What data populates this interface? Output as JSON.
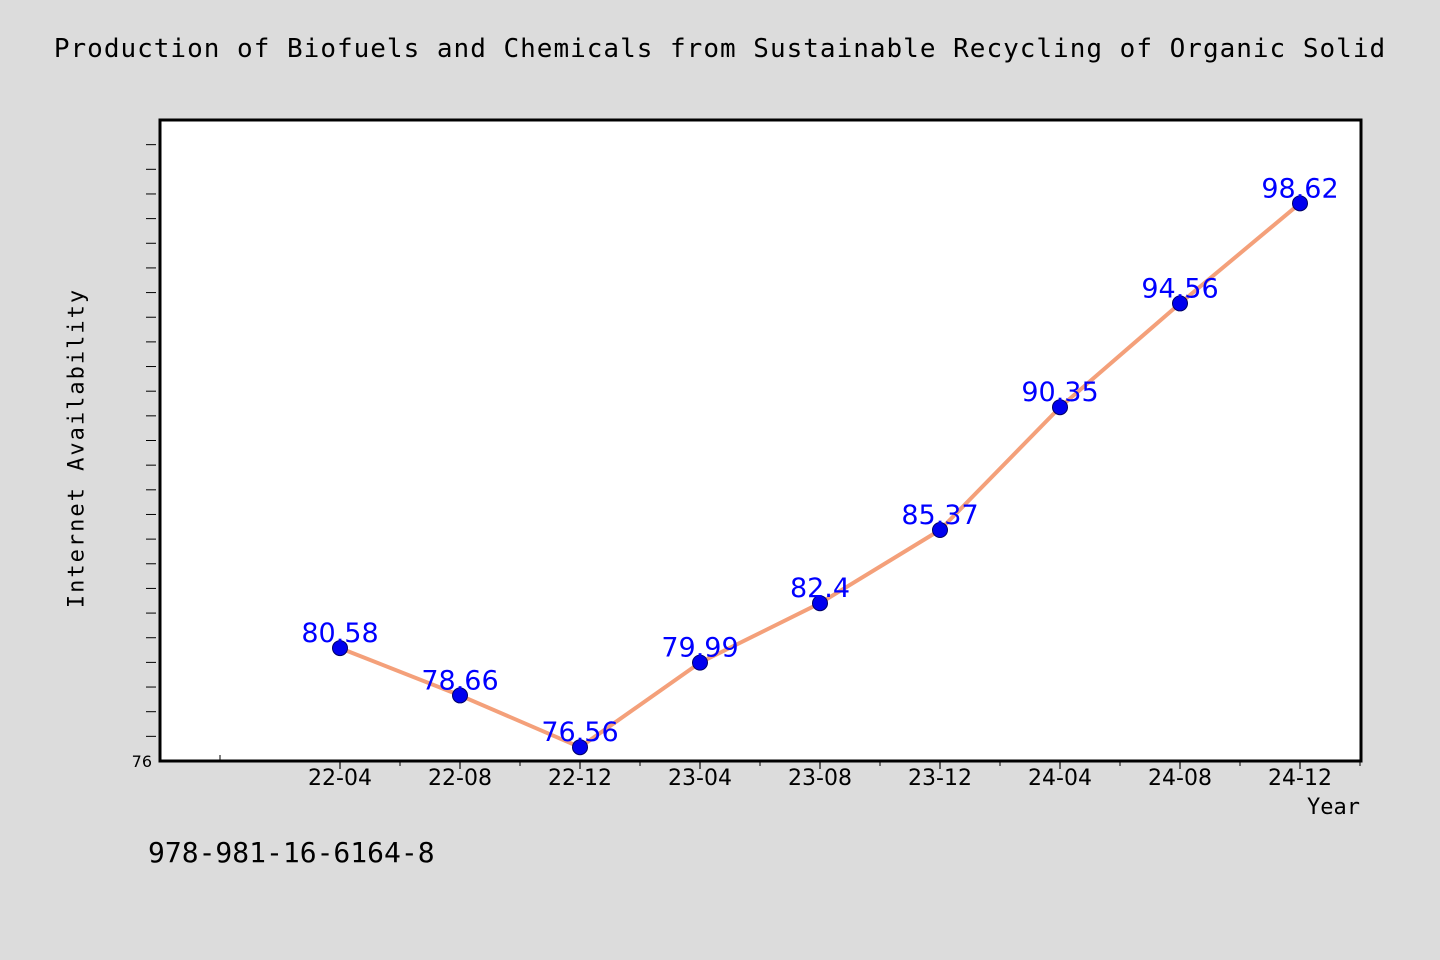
{
  "title": "Production of Biofuels and Chemicals from Sustainable Recycling of Organic Solid",
  "footer_text": "978-981-16-6164-8",
  "colors": {
    "background": "#dcdcdc",
    "plot_background": "#ffffff",
    "line": "#f4a07a",
    "marker": "#0000ee",
    "data_label": "#0000ff",
    "text": "#000000"
  },
  "chart_data": {
    "type": "line",
    "title": "Production of Biofuels and Chemicals from Sustainable Recycling of Organic Solid",
    "xlabel": "Year",
    "ylabel": "Internet Availability",
    "categories": [
      "22-04",
      "22-08",
      "22-12",
      "23-04",
      "23-08",
      "23-12",
      "24-04",
      "24-08",
      "24-12"
    ],
    "series": [
      {
        "values": [
          80.58,
          78.66,
          76.56,
          79.99,
          82.4,
          85.37,
          90.35,
          94.56,
          98.62
        ],
        "labels": [
          "80.58",
          "78.66",
          "76.56",
          "79.99",
          "82.4",
          "85.37",
          "90.35",
          "94.56",
          "98.62"
        ]
      }
    ],
    "ylim": [
      76,
      102
    ],
    "ytick_labels": [
      "76"
    ],
    "grid": false,
    "legend": "none"
  }
}
